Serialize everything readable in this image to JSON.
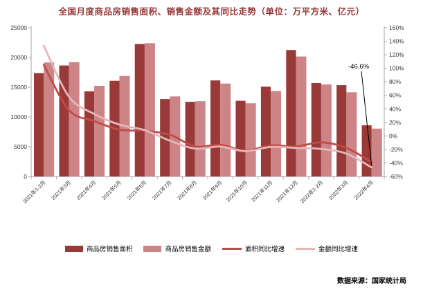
{
  "title": "全国月度商品房销售面积、销售金额及其同比走势（单位：万平方米、亿元）",
  "footer": {
    "source_label": "数据来源：国家统计局"
  },
  "annotation": {
    "text": "-46.6%"
  },
  "colors": {
    "area_bar": "#9a3a38",
    "amount_bar": "#cd8486",
    "area_line": "#bf4b48",
    "amount_line": "#e5b8b7",
    "axis": "#a6a6a6",
    "tick_text": "#333333",
    "title_text": "#943634",
    "annotation_line": "#000000"
  },
  "legend": [
    {
      "label": "商品房销售面积",
      "swatch": "bar",
      "color_key": "area_bar"
    },
    {
      "label": "商品房销售金额",
      "swatch": "bar",
      "color_key": "amount_bar"
    },
    {
      "label": "面积同比增速",
      "swatch": "line",
      "color_key": "area_line"
    },
    {
      "label": "金额同比增速",
      "swatch": "line",
      "color_key": "amount_line"
    }
  ],
  "chart_data": {
    "type": "bar+line combo",
    "title": "全国月度商品房销售面积、销售金额及其同比走势（单位：万平方米、亿元）",
    "categories": [
      "2021年1-2月",
      "2021年3月",
      "2021年4月",
      "2021年5月",
      "2021年6月",
      "2021年7月",
      "2021年8月",
      "2021年9月",
      "2021年10月",
      "2021年11月",
      "2021年12月",
      "2022年1-2月",
      "2022年3月",
      "2022年4月"
    ],
    "series": [
      {
        "name": "商品房销售面积",
        "type": "bar",
        "axis": "left",
        "unit": "万平方米",
        "values": [
          17363,
          18650,
          14300,
          16080,
          22250,
          13010,
          12545,
          16140,
          12720,
          15090,
          21250,
          15700,
          15340,
          8600
        ]
      },
      {
        "name": "商品房销售金额",
        "type": "bar",
        "axis": "left",
        "unit": "亿元",
        "values": [
          19151,
          19200,
          15230,
          16900,
          22400,
          13450,
          12650,
          15610,
          12300,
          14350,
          20160,
          15460,
          14150,
          8050
        ]
      },
      {
        "name": "面积同比增速",
        "type": "line",
        "axis": "right",
        "unit": "%",
        "values": [
          104.9,
          38.1,
          21.9,
          9.2,
          7.5,
          1.7,
          -15.5,
          -13.2,
          -21.7,
          -14.0,
          -15.6,
          -9.6,
          -17.7,
          -39.0
        ]
      },
      {
        "name": "金额同比增速",
        "type": "line",
        "axis": "right",
        "unit": "%",
        "values": [
          133.4,
          58.0,
          32.5,
          16.7,
          8.6,
          -7.1,
          -18.7,
          -15.8,
          -22.6,
          -16.3,
          -17.8,
          -19.3,
          -26.2,
          -46.6
        ]
      }
    ],
    "left_axis": {
      "min": 0,
      "max": 25000,
      "step": 5000,
      "ticks": [
        "0",
        "5000",
        "10000",
        "15000",
        "20000",
        "25000"
      ]
    },
    "right_axis": {
      "min": -60,
      "max": 160,
      "step": 20,
      "ticks": [
        "-60%",
        "-40%",
        "-20%",
        "0%",
        "20%",
        "40%",
        "60%",
        "80%",
        "100%",
        "120%",
        "140%",
        "160%"
      ]
    },
    "grid": false,
    "legend_position": "bottom",
    "annotation": {
      "text": "-46.6%",
      "target_series": "金额同比增速",
      "target_category": "2022年4月"
    }
  }
}
